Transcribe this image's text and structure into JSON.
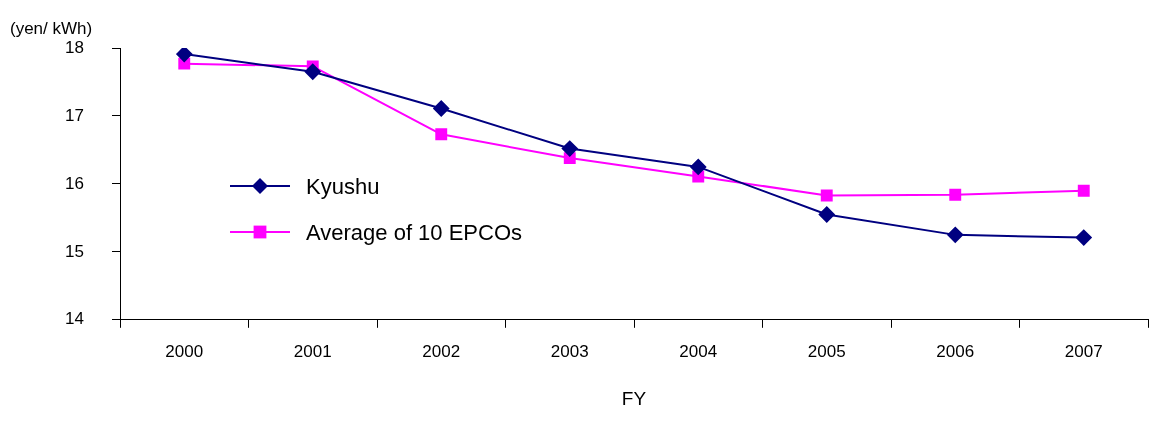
{
  "chart_data": {
    "type": "line",
    "ylabel": "(yen/ kWh)",
    "xlabel": "FY",
    "categories": [
      "2000",
      "2001",
      "2002",
      "2003",
      "2004",
      "2005",
      "2006",
      "2007"
    ],
    "series": [
      {
        "name": "Kyushu",
        "color": "#000080",
        "marker": "diamond",
        "values": [
          17.91,
          17.65,
          17.11,
          16.52,
          16.25,
          15.55,
          15.25,
          15.21
        ]
      },
      {
        "name": "Average of 10 EPCOs",
        "color": "#ff00ff",
        "marker": "square",
        "values": [
          17.77,
          17.73,
          16.73,
          16.38,
          16.11,
          15.83,
          15.84,
          15.9
        ]
      }
    ],
    "ylim": [
      14,
      18
    ],
    "yticks": [
      14,
      15,
      16,
      17,
      18
    ],
    "grid": false,
    "legend": "left"
  }
}
